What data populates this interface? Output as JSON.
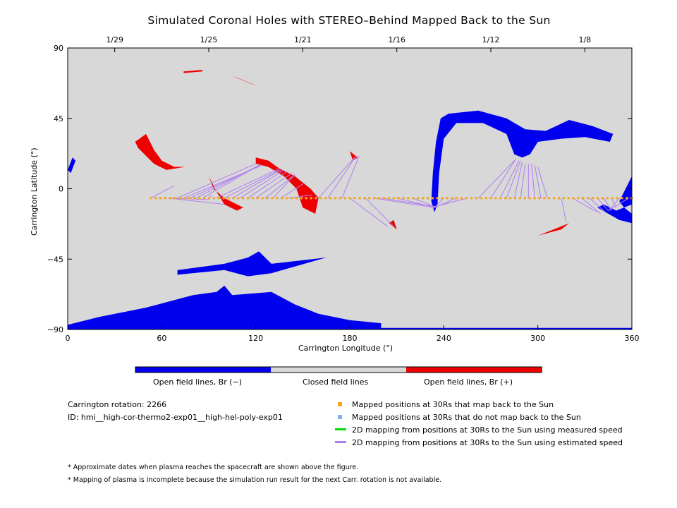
{
  "title": "Simulated Coronal Holes with STEREO–Behind Mapped Back to the Sun",
  "chart_data": {
    "type": "scatter",
    "title": "Simulated Coronal Holes with STEREO–Behind Mapped Back to the Sun",
    "xlabel": "Carrington Longitude (°)",
    "ylabel": "Carrington Latitude (°)",
    "xlim": [
      0,
      360
    ],
    "ylim": [
      -90,
      90
    ],
    "x_ticks": [
      0,
      60,
      120,
      180,
      240,
      300,
      360
    ],
    "y_ticks": [
      -90,
      -45,
      0,
      45,
      90
    ],
    "top_axis": {
      "labels": [
        "1/29",
        "1/25",
        "1/21",
        "1/16",
        "1/12",
        "1/8"
      ],
      "positions": [
        30,
        90,
        150,
        210,
        270,
        330
      ]
    },
    "series": [
      {
        "name": "Mapped positions at 30Rs that map back to the Sun",
        "color": "#f5a623",
        "y": -6,
        "x_start": 53,
        "x_end": 360,
        "x_step": 3.1
      }
    ],
    "mapping_lines_estimated": [
      [
        53,
        -6,
        68,
        2
      ],
      [
        64,
        -6,
        100,
        -10
      ],
      [
        67,
        -6,
        90,
        -7
      ],
      [
        70,
        -6,
        120,
        16
      ],
      [
        74,
        -6,
        124,
        15
      ],
      [
        78,
        -6,
        123,
        15
      ],
      [
        82,
        -6,
        122,
        15
      ],
      [
        86,
        -6,
        122,
        15
      ],
      [
        90,
        -6,
        92,
        -4
      ],
      [
        95,
        -6,
        135,
        13
      ],
      [
        100,
        -6,
        135,
        12
      ],
      [
        105,
        -6,
        136,
        12
      ],
      [
        110,
        -6,
        138,
        12
      ],
      [
        115,
        -6,
        140,
        11
      ],
      [
        120,
        -6,
        143,
        10
      ],
      [
        126,
        -6,
        145,
        9
      ],
      [
        131,
        -6,
        144,
        8
      ],
      [
        136,
        -6,
        150,
        3
      ],
      [
        141,
        -6,
        156,
        -4
      ],
      [
        160,
        -6,
        183,
        20
      ],
      [
        166,
        -6,
        184,
        21
      ],
      [
        175,
        -6,
        186,
        21
      ],
      [
        180,
        -6,
        204,
        -24
      ],
      [
        190,
        -6,
        208,
        -24
      ],
      [
        195,
        -6,
        234,
        -12
      ],
      [
        200,
        -6,
        232,
        -11
      ],
      [
        210,
        -6,
        235,
        -12
      ],
      [
        220,
        -6,
        236,
        -12
      ],
      [
        240,
        -6,
        233,
        -13
      ],
      [
        248,
        -6,
        234,
        -12
      ],
      [
        255,
        -6,
        236,
        -11
      ],
      [
        262,
        -6,
        285,
        18
      ],
      [
        270,
        -6,
        286,
        19
      ],
      [
        276,
        -6,
        288,
        18
      ],
      [
        280,
        -6,
        289,
        18
      ],
      [
        285,
        -6,
        290,
        17
      ],
      [
        289,
        -6,
        292,
        16
      ],
      [
        294,
        -6,
        294,
        16
      ],
      [
        298,
        -6,
        296,
        16
      ],
      [
        302,
        -6,
        298,
        15
      ],
      [
        306,
        -6,
        300,
        14
      ],
      [
        315,
        -6,
        318,
        -21
      ],
      [
        322,
        -6,
        338,
        -15
      ],
      [
        328,
        -6,
        340,
        -16
      ],
      [
        333,
        -6,
        343,
        -15
      ],
      [
        338,
        -6,
        345,
        -14
      ],
      [
        342,
        -6,
        347,
        -14
      ],
      [
        347,
        -6,
        350,
        -12
      ],
      [
        352,
        -6,
        346,
        -13
      ],
      [
        358,
        -6,
        345,
        -14
      ]
    ],
    "open_field_negative": [
      [
        [
          243,
          48
        ],
        [
          262,
          50
        ],
        [
          280,
          45
        ],
        [
          292,
          38
        ],
        [
          305,
          37
        ],
        [
          320,
          44
        ],
        [
          335,
          40
        ],
        [
          348,
          35
        ],
        [
          346,
          30
        ],
        [
          330,
          33
        ],
        [
          315,
          32
        ],
        [
          300,
          30
        ],
        [
          295,
          22
        ],
        [
          290,
          20
        ],
        [
          285,
          22
        ],
        [
          280,
          35
        ],
        [
          265,
          42
        ],
        [
          248,
          42
        ],
        [
          240,
          32
        ],
        [
          237,
          10
        ],
        [
          236,
          -10
        ],
        [
          234,
          -15
        ],
        [
          232,
          -8
        ],
        [
          233,
          10
        ],
        [
          235,
          30
        ],
        [
          238,
          45
        ]
      ],
      [
        [
          0,
          -87
        ],
        [
          20,
          -82
        ],
        [
          50,
          -76
        ],
        [
          80,
          -68
        ],
        [
          95,
          -66
        ],
        [
          100,
          -62
        ],
        [
          105,
          -68
        ],
        [
          130,
          -66
        ],
        [
          145,
          -74
        ],
        [
          160,
          -80
        ],
        [
          180,
          -84
        ],
        [
          200,
          -86
        ],
        [
          200,
          -90
        ],
        [
          0,
          -90
        ]
      ],
      [
        [
          70,
          -52
        ],
        [
          100,
          -48
        ],
        [
          115,
          -44
        ],
        [
          122,
          -40
        ],
        [
          130,
          -48
        ],
        [
          165,
          -44
        ],
        [
          130,
          -54
        ],
        [
          115,
          -56
        ],
        [
          100,
          -52
        ],
        [
          70,
          -55
        ]
      ],
      [
        [
          338,
          -12
        ],
        [
          345,
          -16
        ],
        [
          352,
          -20
        ],
        [
          360,
          -22
        ],
        [
          360,
          -16
        ],
        [
          355,
          -12
        ],
        [
          352,
          -8
        ],
        [
          357,
          2
        ],
        [
          360,
          8
        ],
        [
          360,
          -10
        ],
        [
          350,
          -14
        ],
        [
          342,
          -10
        ]
      ],
      [
        [
          0,
          12
        ],
        [
          3,
          20
        ],
        [
          5,
          18
        ],
        [
          2,
          10
        ]
      ],
      [
        [
          0,
          -90
        ],
        [
          360,
          -90
        ],
        [
          360,
          -89
        ],
        [
          0,
          -89
        ]
      ]
    ],
    "open_field_positive": [
      [
        [
          43,
          30
        ],
        [
          50,
          35
        ],
        [
          55,
          25
        ],
        [
          60,
          18
        ],
        [
          68,
          14
        ],
        [
          75,
          14
        ],
        [
          63,
          12
        ],
        [
          55,
          16
        ],
        [
          45,
          26
        ]
      ],
      [
        [
          90,
          8
        ],
        [
          95,
          -2
        ],
        [
          100,
          -10
        ],
        [
          108,
          -14
        ],
        [
          112,
          -12
        ],
        [
          100,
          -6
        ],
        [
          93,
          0
        ]
      ],
      [
        [
          120,
          20
        ],
        [
          128,
          18
        ],
        [
          135,
          13
        ],
        [
          145,
          8
        ],
        [
          155,
          0
        ],
        [
          160,
          -6
        ],
        [
          158,
          -16
        ],
        [
          150,
          -12
        ],
        [
          146,
          0
        ],
        [
          138,
          8
        ],
        [
          128,
          14
        ],
        [
          120,
          16
        ]
      ],
      [
        [
          180,
          24
        ],
        [
          185,
          20
        ],
        [
          182,
          18
        ]
      ],
      [
        [
          205,
          -22
        ],
        [
          210,
          -26
        ],
        [
          208,
          -20
        ]
      ],
      [
        [
          300,
          -30
        ],
        [
          315,
          -26
        ],
        [
          320,
          -22
        ],
        [
          315,
          -24
        ],
        [
          305,
          -28
        ]
      ],
      [
        [
          74,
          75
        ],
        [
          86,
          76
        ],
        [
          86,
          75
        ],
        [
          74,
          74
        ]
      ],
      [
        [
          105,
          72
        ],
        [
          115,
          68
        ],
        [
          120,
          66
        ],
        [
          118,
          67
        ],
        [
          108,
          71
        ]
      ]
    ]
  },
  "colorbar": {
    "labels": [
      "Open field lines, Br (−)",
      "Closed field lines",
      "Open field lines, Br (+)"
    ],
    "colors": [
      "#0000ee",
      "#d8d8d8",
      "#ee0000"
    ]
  },
  "info": {
    "rotation": "Carrington rotation: 2266",
    "id": "ID: hmi__high-cor-thermo2-exp01__high-hel-poly-exp01"
  },
  "legend": {
    "items": [
      {
        "label": "Mapped positions at 30Rs that map back to the Sun",
        "color": "#f5a623",
        "kind": "square"
      },
      {
        "label": "Mapped positions at 30Rs that do not map back to the Sun",
        "color": "#7fb2f0",
        "kind": "square"
      },
      {
        "label": "2D mapping from positions at 30Rs to the Sun using measured speed",
        "color": "#00dd00",
        "kind": "line"
      },
      {
        "label": "2D mapping from positions at 30Rs to the Sun using estimated speed",
        "color": "#b07ef0",
        "kind": "line"
      }
    ]
  },
  "footnotes": [
    "* Approximate dates when plasma reaches the spacecraft are shown above the figure.",
    "* Mapping of plasma is incomplete because the simulation run result for the next Carr. rotation is not available."
  ]
}
